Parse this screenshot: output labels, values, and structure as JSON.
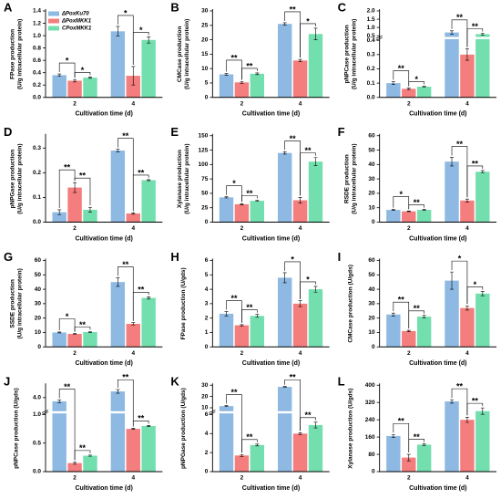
{
  "chart_data": [
    {
      "type": "bar",
      "panel": "A",
      "y_label": [
        "FPase production",
        "(U/g intracellular protein)"
      ],
      "x_label": "Cultivation time (d)",
      "categories": [
        "2",
        "4"
      ],
      "legend": "upper left",
      "series": [
        {
          "name": "ΔPoxKu70",
          "color": "#8db9e2",
          "values": [
            0.36,
            1.07
          ],
          "errors": [
            0.02,
            0.08
          ]
        },
        {
          "name": "ΔPoxMKK1",
          "color": "#f47d7d",
          "values": [
            0.27,
            0.35
          ],
          "errors": [
            0.02,
            0.15
          ]
        },
        {
          "name": "CPoxMKK1",
          "color": "#73dfae",
          "values": [
            0.32,
            0.93
          ],
          "errors": [
            0.01,
            0.05
          ]
        }
      ],
      "ylim": [
        0,
        1.4
      ],
      "yticks": [
        {
          "value": 0,
          "label": "0.0"
        },
        0.2,
        0.4,
        0.6,
        0.8,
        {
          "value": 1,
          "label": "1.0"
        },
        1.2,
        1.4
      ],
      "significance": [
        [
          "*",
          "*"
        ],
        [
          "*",
          "*"
        ]
      ]
    },
    {
      "type": "bar",
      "panel": "B",
      "y_label": [
        "CMCase production",
        "(U/g intracellular protein)"
      ],
      "x_label": "Cultivation time (d)",
      "categories": [
        "2",
        "4"
      ],
      "series": [
        {
          "color": "#8db9e2",
          "values": [
            8.0,
            25.5
          ],
          "errors": [
            0.3,
            0.4
          ]
        },
        {
          "color": "#f47d7d",
          "values": [
            5.2,
            12.8
          ],
          "errors": [
            0.3,
            0.4
          ]
        },
        {
          "color": "#73dfae",
          "values": [
            8.2,
            22
          ],
          "errors": [
            0.3,
            2
          ]
        }
      ],
      "ylim": [
        0,
        30
      ],
      "yticks": [
        0,
        5,
        10,
        15,
        20,
        25,
        30
      ],
      "significance": [
        [
          "**",
          "**"
        ],
        [
          "**",
          "*"
        ]
      ]
    },
    {
      "type": "bar",
      "panel": "C",
      "y_label": [
        "pNPCase production",
        "(U/g intracellular protein)"
      ],
      "x_label": "Cultivation time (d)",
      "categories": [
        "2",
        "4"
      ],
      "series": [
        {
          "color": "#8db9e2",
          "values": [
            0.1,
            0.7
          ],
          "errors": [
            0.01,
            0.1
          ]
        },
        {
          "color": "#f47d7d",
          "values": [
            0.06,
            0.3
          ],
          "errors": [
            0.005,
            0.04
          ]
        },
        {
          "color": "#73dfae",
          "values": [
            0.075,
            0.6
          ],
          "errors": [
            0.003,
            0.05
          ]
        }
      ],
      "ylim": [
        0,
        2
      ],
      "ybreak": [
        0.4,
        0.5
      ],
      "yticks": [
        {
          "value": 0,
          "label": "0.0"
        },
        0.1,
        0.2,
        0.3,
        0.4,
        0.5,
        {
          "value": 1,
          "label": "1.0"
        },
        1.5,
        {
          "value": 2,
          "label": "2.0"
        }
      ],
      "significance": [
        [
          "**",
          "*"
        ],
        [
          "**",
          "**"
        ]
      ]
    },
    {
      "type": "bar",
      "panel": "D",
      "y_label": [
        "pNPGase production",
        "(U/g intracellular protein)"
      ],
      "x_label": "Cultivation time (d)",
      "categories": [
        "2",
        "4"
      ],
      "series": [
        {
          "color": "#8db9e2",
          "values": [
            0.04,
            0.29
          ],
          "errors": [
            0.01,
            0.005
          ]
        },
        {
          "color": "#f47d7d",
          "values": [
            0.14,
            0.035
          ],
          "errors": [
            0.02,
            0.003
          ]
        },
        {
          "color": "#73dfae",
          "values": [
            0.05,
            0.17
          ],
          "errors": [
            0.01,
            0.002
          ]
        }
      ],
      "ylim": [
        0,
        0.35
      ],
      "yticks": [
        {
          "value": 0,
          "label": "0.0"
        },
        0.1,
        0.2,
        0.3
      ],
      "significance": [
        [
          "**",
          "**"
        ],
        [
          "**",
          "**"
        ]
      ]
    },
    {
      "type": "bar",
      "panel": "E",
      "y_label": [
        "Xylanase production",
        "(U/g intracellular protein)"
      ],
      "x_label": "Cultivation time (d)",
      "categories": [
        "2",
        "4"
      ],
      "series": [
        {
          "color": "#8db9e2",
          "values": [
            43,
            120
          ],
          "errors": [
            1,
            2
          ]
        },
        {
          "color": "#f47d7d",
          "values": [
            31,
            38
          ],
          "errors": [
            1,
            5
          ]
        },
        {
          "color": "#73dfae",
          "values": [
            37,
            105
          ],
          "errors": [
            1,
            7
          ]
        }
      ],
      "ylim": [
        0,
        150
      ],
      "yticks": [
        0,
        25,
        50,
        75,
        100,
        125,
        150
      ],
      "significance": [
        [
          "*",
          "**"
        ],
        [
          "**",
          "**"
        ]
      ]
    },
    {
      "type": "bar",
      "panel": "F",
      "y_label": [
        "RSDE production",
        "(U/g intracellular protein)"
      ],
      "x_label": "Cultivation time (d)",
      "categories": [
        "2",
        "4"
      ],
      "series": [
        {
          "color": "#8db9e2",
          "values": [
            8.5,
            42
          ],
          "errors": [
            0.3,
            3
          ]
        },
        {
          "color": "#f47d7d",
          "values": [
            7.5,
            15
          ],
          "errors": [
            0.2,
            1
          ]
        },
        {
          "color": "#73dfae",
          "values": [
            8.5,
            35
          ],
          "errors": [
            0.3,
            0.8
          ]
        }
      ],
      "ylim": [
        0,
        60
      ],
      "yticks": [
        0,
        10,
        20,
        30,
        40,
        50,
        60
      ],
      "significance": [
        [
          "*",
          "**"
        ],
        [
          "**",
          "**"
        ]
      ]
    },
    {
      "type": "bar",
      "panel": "G",
      "y_label": [
        "SSDE production",
        "(U/g intracellular protein)"
      ],
      "x_label": "Cultivation time (d)",
      "categories": [
        "2",
        "4"
      ],
      "series": [
        {
          "color": "#8db9e2",
          "values": [
            10,
            45
          ],
          "errors": [
            0.3,
            3
          ]
        },
        {
          "color": "#f47d7d",
          "values": [
            9,
            16
          ],
          "errors": [
            0.3,
            0.8
          ]
        },
        {
          "color": "#73dfae",
          "values": [
            10.3,
            34
          ],
          "errors": [
            0.3,
            0.8
          ]
        }
      ],
      "ylim": [
        0,
        60
      ],
      "yticks": [
        0,
        10,
        20,
        30,
        40,
        50,
        60
      ],
      "significance": [
        [
          "*",
          "**"
        ],
        [
          "**",
          "**"
        ]
      ]
    },
    {
      "type": "bar",
      "panel": "H",
      "y_label": [
        "FPase production (U/gds)"
      ],
      "x_label": "Cultivation time (d)",
      "categories": [
        "2",
        "4"
      ],
      "series": [
        {
          "color": "#8db9e2",
          "values": [
            2.3,
            4.8
          ],
          "errors": [
            0.15,
            0.35
          ]
        },
        {
          "color": "#f47d7d",
          "values": [
            1.5,
            3.0
          ],
          "errors": [
            0.05,
            0.2
          ]
        },
        {
          "color": "#73dfae",
          "values": [
            2.15,
            4.0
          ],
          "errors": [
            0.1,
            0.2
          ]
        }
      ],
      "ylim": [
        0,
        6
      ],
      "yticks": [
        0,
        1,
        2,
        3,
        4,
        5,
        6
      ],
      "significance": [
        [
          "**",
          "**"
        ],
        [
          "*",
          "*"
        ]
      ]
    },
    {
      "type": "bar",
      "panel": "I",
      "y_label": [
        "CMCase production (U/gds)"
      ],
      "x_label": "Cultivation time (d)",
      "categories": [
        "2",
        "4"
      ],
      "series": [
        {
          "color": "#8db9e2",
          "values": [
            22.5,
            46
          ],
          "errors": [
            1,
            6
          ]
        },
        {
          "color": "#f47d7d",
          "values": [
            11,
            27
          ],
          "errors": [
            0.5,
            1.5
          ]
        },
        {
          "color": "#73dfae",
          "values": [
            21,
            37
          ],
          "errors": [
            0.8,
            1.5
          ]
        }
      ],
      "ylim": [
        0,
        60
      ],
      "yticks": [
        0,
        10,
        20,
        30,
        40,
        50,
        60
      ],
      "significance": [
        [
          "**",
          "**"
        ],
        [
          "*",
          "*"
        ]
      ]
    },
    {
      "type": "bar",
      "panel": "J",
      "y_label": [
        "pNPCase production (U/gds)"
      ],
      "x_label": "Cultivation time (d)",
      "categories": [
        "2",
        "4"
      ],
      "series": [
        {
          "color": "#8db9e2",
          "values": [
            3.7,
            4.5
          ],
          "errors": [
            0.1,
            0.15
          ]
        },
        {
          "color": "#f47d7d",
          "values": [
            0.15,
            0.75
          ],
          "errors": [
            0.02,
            0.01
          ]
        },
        {
          "color": "#73dfae",
          "values": [
            0.28,
            0.8
          ],
          "errors": [
            0.01,
            0.01
          ]
        }
      ],
      "ylim": [
        0,
        5
      ],
      "ybreak": [
        1,
        3
      ],
      "yticks": [
        {
          "value": 0,
          "label": "0.0"
        },
        0.5,
        {
          "value": 1,
          "label": "1.0"
        },
        {
          "value": 4,
          "label": "4.0"
        }
      ],
      "significance": [
        [
          "**",
          "**"
        ],
        [
          "**",
          "**"
        ]
      ]
    },
    {
      "type": "bar",
      "panel": "K",
      "y_label": [
        "pNPGase production (U/gds)"
      ],
      "x_label": "Cultivation time (d)",
      "categories": [
        "2",
        "4"
      ],
      "series": [
        {
          "color": "#8db9e2",
          "values": [
            11.5,
            28.5
          ],
          "errors": [
            0.5,
            0.3
          ]
        },
        {
          "color": "#f47d7d",
          "values": [
            1.7,
            4.0
          ],
          "errors": [
            0.1,
            0.1
          ]
        },
        {
          "color": "#73dfae",
          "values": [
            2.8,
            4.9
          ],
          "errors": [
            0.1,
            0.3
          ]
        }
      ],
      "ylim": [
        0,
        30
      ],
      "ybreak": [
        6,
        8
      ],
      "yticks": [
        0,
        2,
        4,
        6,
        10,
        20,
        30
      ],
      "significance": [
        [
          "**",
          "**"
        ],
        [
          "**",
          "**"
        ]
      ]
    },
    {
      "type": "bar",
      "panel": "L",
      "y_label": [
        "Xylanase production (U/gds)"
      ],
      "x_label": "Cultivation time (d)",
      "categories": [
        "2",
        "4"
      ],
      "series": [
        {
          "color": "#8db9e2",
          "values": [
            165,
            325
          ],
          "errors": [
            7,
            8
          ]
        },
        {
          "color": "#f47d7d",
          "values": [
            65,
            240
          ],
          "errors": [
            15,
            12
          ]
        },
        {
          "color": "#73dfae",
          "values": [
            125,
            280
          ],
          "errors": [
            4,
            15
          ]
        }
      ],
      "ylim": [
        0,
        400
      ],
      "yticks": [
        0,
        80,
        160,
        240,
        320,
        400
      ],
      "significance": [
        [
          "**",
          "**"
        ],
        [
          "**",
          "**"
        ]
      ]
    }
  ]
}
